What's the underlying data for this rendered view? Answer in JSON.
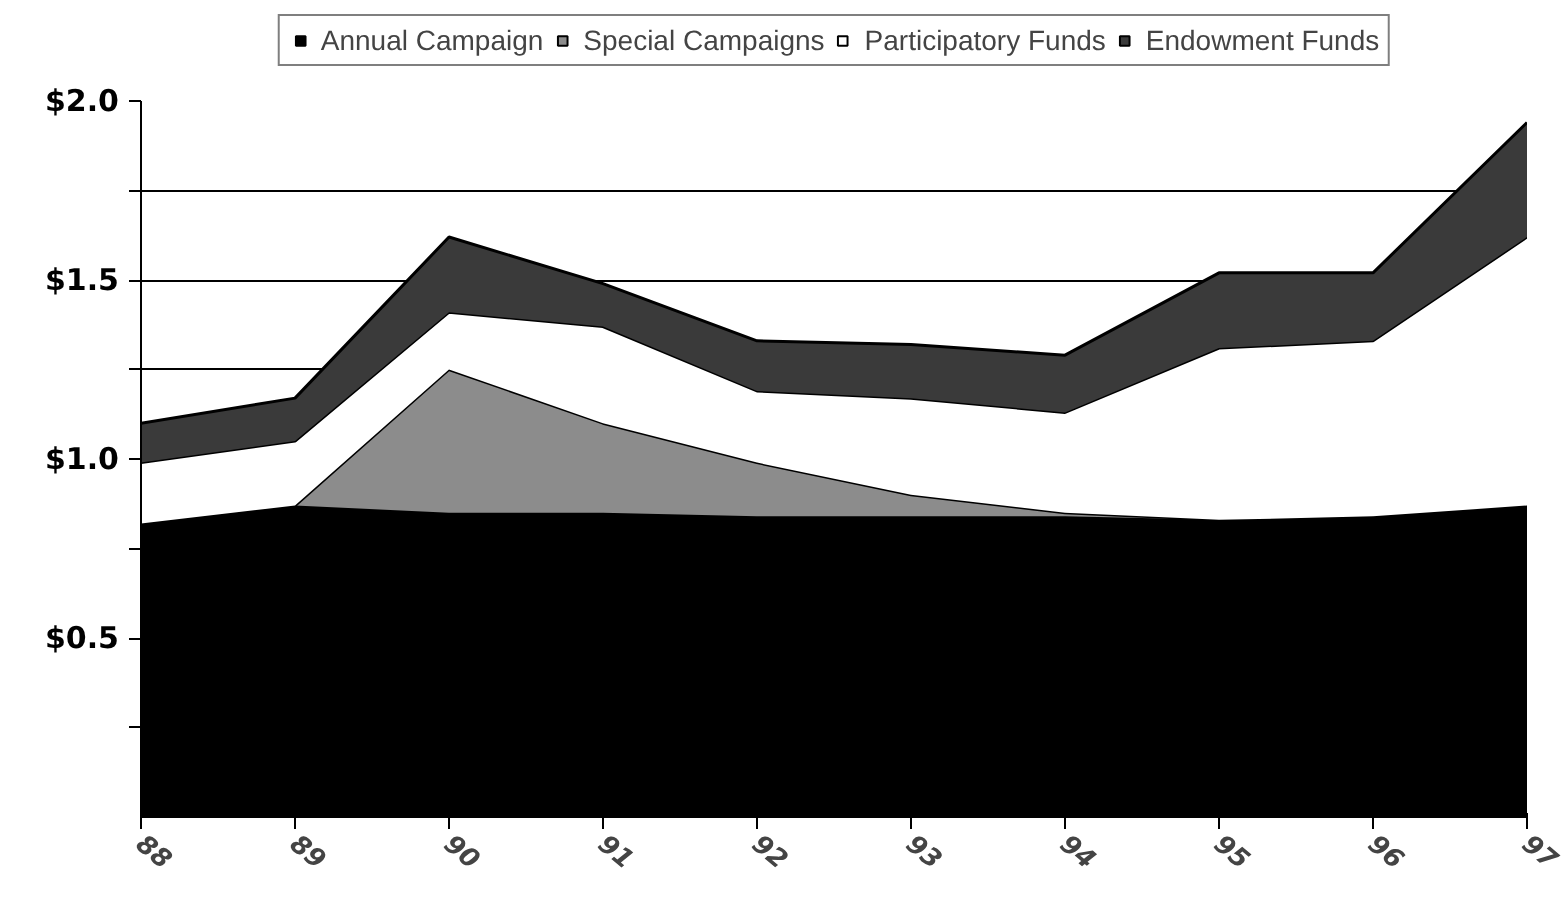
{
  "chart_data": {
    "type": "area",
    "stacked": true,
    "categories": [
      "88",
      "89",
      "90",
      "91",
      "92",
      "93",
      "94",
      "95",
      "96",
      "97"
    ],
    "series": [
      {
        "name": "Annual Campaign",
        "color": "#000000",
        "values": [
          0.82,
          0.87,
          0.85,
          0.85,
          0.84,
          0.84,
          0.84,
          0.83,
          0.84,
          0.87
        ]
      },
      {
        "name": "Special Campaigns",
        "color": "#8c8c8c",
        "values": [
          0,
          0,
          0.4,
          0.25,
          0.15,
          0.06,
          0.01,
          0,
          0,
          0
        ]
      },
      {
        "name": "Participatory Funds",
        "color": "#ffffff",
        "values": [
          0.17,
          0.18,
          0.16,
          0.27,
          0.2,
          0.27,
          0.28,
          0.48,
          0.49,
          0.75
        ]
      },
      {
        "name": "Endowment Funds",
        "color": "#3a3a3a",
        "values": [
          0.11,
          0.12,
          0.21,
          0.12,
          0.14,
          0.15,
          0.16,
          0.21,
          0.19,
          0.32
        ]
      }
    ],
    "ylim": [
      0,
      2
    ],
    "yticks": [
      {
        "value": 0.25,
        "label": null
      },
      {
        "value": 0.5,
        "label": "$0.5"
      },
      {
        "value": 0.75,
        "label": null
      },
      {
        "value": 1,
        "label": "$1.0"
      },
      {
        "value": 1.25,
        "label": null
      },
      {
        "value": 1.5,
        "label": "$1.5"
      },
      {
        "value": 1.75,
        "label": null
      },
      {
        "value": 2,
        "label": "$2.0"
      }
    ],
    "grid": "y",
    "legend": "top"
  }
}
